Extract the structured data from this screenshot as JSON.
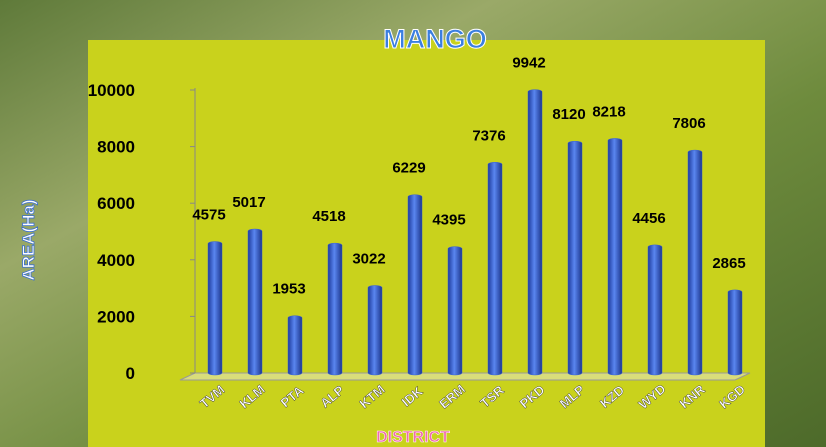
{
  "chart_data": {
    "type": "bar",
    "title": "MANGO",
    "x_label": "DISTRICT",
    "y_label": "AREA(Ha)",
    "categories": [
      "TVM",
      "KLM",
      "PTA",
      "ALP",
      "KTM",
      "IDK",
      "ERM",
      "TSR",
      "PKD",
      "MLP",
      "KZD",
      "WYD",
      "KNR",
      "KGD"
    ],
    "values": [
      4575,
      5017,
      1953,
      4518,
      3022,
      6229,
      4395,
      7376,
      9942,
      8120,
      8218,
      4456,
      7806,
      2865
    ],
    "color": "#3a62d6",
    "ylim": [
      0,
      10000
    ],
    "yticks": [
      0,
      2000,
      4000,
      6000,
      8000,
      10000
    ]
  }
}
